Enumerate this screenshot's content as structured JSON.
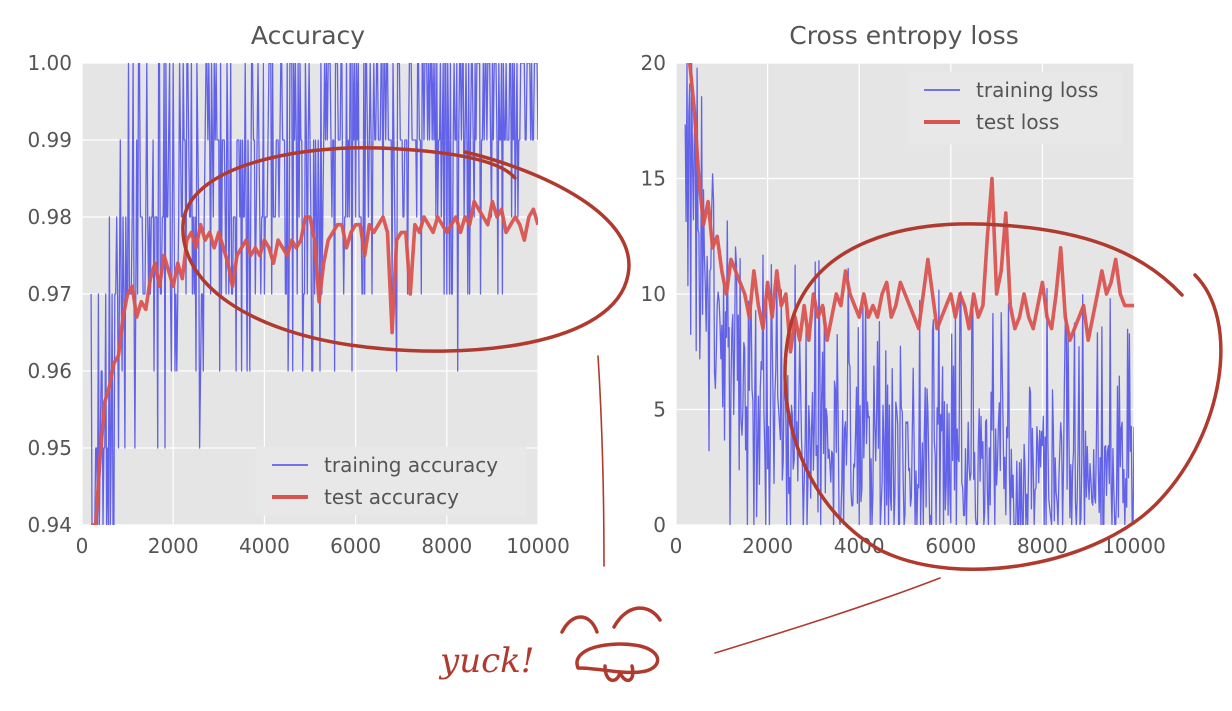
{
  "colors": {
    "background": "#e5e5e5",
    "grid": "#ffffff",
    "training": "#4b4bea",
    "test": "#d9534f",
    "annotation": "#b03a2e"
  },
  "annotation": {
    "note": "yuck!",
    "icon": "unimpressed-face-doodle"
  },
  "chart_data": [
    {
      "type": "line",
      "title": "Accuracy",
      "xlim": [
        0,
        10000
      ],
      "ylim": [
        0.94,
        1.0
      ],
      "x_ticks": [
        0,
        2000,
        4000,
        6000,
        8000,
        10000
      ],
      "y_ticks": [
        0.94,
        0.95,
        0.96,
        0.97,
        0.98,
        0.99,
        1.0
      ],
      "x_tick_labels": [
        "0",
        "2000",
        "4000",
        "6000",
        "8000",
        "10000"
      ],
      "y_tick_labels": [
        "0.94",
        "0.95",
        "0.96",
        "0.97",
        "0.98",
        "0.99",
        "1.00"
      ],
      "grid": true,
      "legend_position": "lower-right",
      "series": [
        {
          "name": "training accuracy",
          "style": "thin",
          "x_step": 20,
          "x_start": 200,
          "trend": [
            [
              200,
              0.945
            ],
            [
              1000,
              0.972
            ],
            [
              2000,
              0.982
            ],
            [
              4000,
              0.988
            ],
            [
              6000,
              0.992
            ],
            [
              10000,
              0.995
            ]
          ],
          "spread_lo": 0.03,
          "spread_hi": 0.01,
          "levels": [
            0.94,
            0.95,
            0.96,
            0.97,
            0.98,
            0.99,
            1.0
          ]
        },
        {
          "name": "test accuracy",
          "style": "thick",
          "x": [
            200,
            300,
            400,
            500,
            600,
            700,
            800,
            900,
            1000,
            1100,
            1200,
            1300,
            1400,
            1500,
            1600,
            1700,
            1800,
            1900,
            2000,
            2100,
            2200,
            2300,
            2400,
            2500,
            2600,
            2700,
            2800,
            2900,
            3000,
            3100,
            3200,
            3300,
            3400,
            3500,
            3600,
            3700,
            3800,
            3900,
            4000,
            4100,
            4200,
            4300,
            4400,
            4500,
            4600,
            4700,
            4800,
            4900,
            5000,
            5100,
            5200,
            5300,
            5400,
            5500,
            5600,
            5700,
            5800,
            5900,
            6000,
            6100,
            6200,
            6300,
            6400,
            6500,
            6600,
            6700,
            6800,
            6900,
            7000,
            7100,
            7200,
            7300,
            7400,
            7500,
            7600,
            7700,
            7800,
            7900,
            8000,
            8100,
            8200,
            8300,
            8400,
            8500,
            8600,
            8700,
            8800,
            8900,
            9000,
            9100,
            9200,
            9300,
            9400,
            9500,
            9600,
            9700,
            9800,
            9900,
            10000
          ],
          "y": [
            0.94,
            0.94,
            0.949,
            0.956,
            0.958,
            0.961,
            0.962,
            0.967,
            0.97,
            0.971,
            0.967,
            0.969,
            0.968,
            0.972,
            0.974,
            0.971,
            0.975,
            0.973,
            0.971,
            0.974,
            0.972,
            0.977,
            0.978,
            0.976,
            0.979,
            0.977,
            0.978,
            0.976,
            0.978,
            0.976,
            0.974,
            0.971,
            0.975,
            0.976,
            0.977,
            0.975,
            0.976,
            0.975,
            0.977,
            0.976,
            0.974,
            0.977,
            0.976,
            0.975,
            0.977,
            0.976,
            0.977,
            0.98,
            0.98,
            0.977,
            0.969,
            0.974,
            0.977,
            0.978,
            0.979,
            0.979,
            0.976,
            0.978,
            0.979,
            0.979,
            0.975,
            0.979,
            0.978,
            0.979,
            0.98,
            0.978,
            0.965,
            0.977,
            0.978,
            0.978,
            0.97,
            0.979,
            0.978,
            0.98,
            0.979,
            0.978,
            0.98,
            0.979,
            0.978,
            0.979,
            0.98,
            0.978,
            0.98,
            0.979,
            0.982,
            0.981,
            0.98,
            0.979,
            0.982,
            0.98,
            0.981,
            0.978,
            0.979,
            0.98,
            0.979,
            0.977,
            0.98,
            0.981,
            0.979
          ]
        }
      ]
    },
    {
      "type": "line",
      "title": "Cross entropy loss",
      "xlim": [
        0,
        10000
      ],
      "ylim": [
        0,
        20
      ],
      "x_ticks": [
        0,
        2000,
        4000,
        6000,
        8000,
        10000
      ],
      "y_ticks": [
        0,
        5,
        10,
        15,
        20
      ],
      "x_tick_labels": [
        "0",
        "2000",
        "4000",
        "6000",
        "8000",
        "10000"
      ],
      "y_tick_labels": [
        "0",
        "5",
        "10",
        "15",
        "20"
      ],
      "grid": true,
      "legend_position": "upper-right",
      "series": [
        {
          "name": "training loss",
          "style": "thin",
          "x_step": 20,
          "x_start": 200,
          "trend": [
            [
              200,
              16
            ],
            [
              600,
              10
            ],
            [
              1000,
              7
            ],
            [
              2000,
              4.5
            ],
            [
              4000,
              3
            ],
            [
              6000,
              2.5
            ],
            [
              10000,
              2
            ]
          ],
          "spread_lo": 2.5,
          "spread_hi": 8
        },
        {
          "name": "test loss",
          "style": "thick",
          "x": [
            300,
            400,
            500,
            600,
            700,
            800,
            900,
            1000,
            1100,
            1200,
            1300,
            1400,
            1500,
            1600,
            1700,
            1800,
            1900,
            2000,
            2100,
            2200,
            2300,
            2400,
            2500,
            2600,
            2700,
            2800,
            2900,
            3000,
            3100,
            3200,
            3300,
            3400,
            3500,
            3600,
            3700,
            3800,
            3900,
            4000,
            4100,
            4200,
            4300,
            4400,
            4500,
            4600,
            4700,
            4800,
            4900,
            5000,
            5100,
            5200,
            5300,
            5400,
            5500,
            5600,
            5700,
            5800,
            5900,
            6000,
            6100,
            6200,
            6300,
            6400,
            6500,
            6600,
            6700,
            6800,
            6900,
            7000,
            7100,
            7200,
            7300,
            7400,
            7500,
            7600,
            7700,
            7800,
            7900,
            8000,
            8100,
            8200,
            8300,
            8400,
            8500,
            8600,
            8700,
            8800,
            8900,
            9000,
            9100,
            9200,
            9300,
            9400,
            9500,
            9600,
            9700,
            9800,
            9900,
            10000
          ],
          "y": [
            20,
            18,
            15,
            13,
            14,
            12,
            12.5,
            11,
            10,
            11.5,
            11,
            10.5,
            10,
            9,
            11,
            9.5,
            8.5,
            10.5,
            9,
            11,
            9.5,
            10,
            7.5,
            9,
            8,
            9.5,
            8,
            10,
            9,
            9.5,
            8,
            9,
            10,
            9.5,
            11,
            10,
            9.5,
            9,
            10,
            9,
            9.5,
            9,
            10,
            10.5,
            9,
            9.5,
            10.5,
            10,
            9.5,
            9,
            8.5,
            10,
            11.5,
            10,
            8.5,
            9,
            9.5,
            10,
            9,
            10,
            9.5,
            8.5,
            10,
            9,
            9.5,
            12.5,
            15,
            10,
            11,
            13.5,
            9.5,
            8.5,
            9,
            10,
            9,
            8.5,
            9.5,
            10.5,
            9,
            8.5,
            10,
            12,
            9,
            8,
            8.5,
            9,
            9.5,
            8,
            9,
            10,
            11,
            10,
            10.5,
            11.5,
            10,
            9.5,
            9.5,
            9.5
          ]
        }
      ]
    }
  ]
}
